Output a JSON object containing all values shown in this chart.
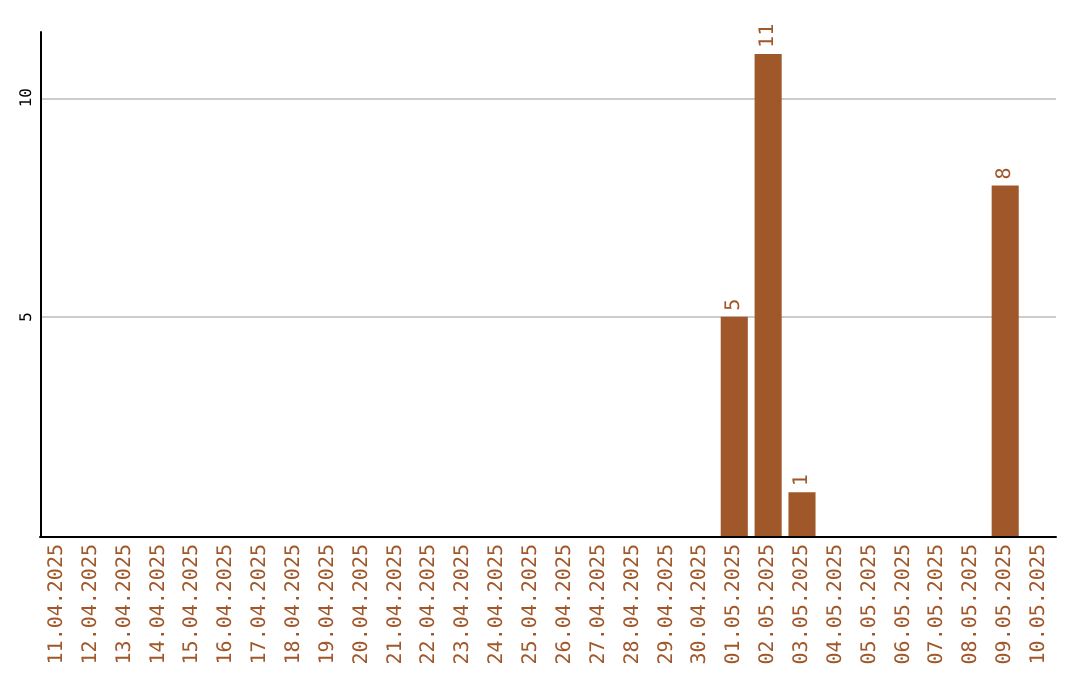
{
  "chart_data": {
    "type": "bar",
    "categories": [
      "11.04.2025",
      "12.04.2025",
      "13.04.2025",
      "14.04.2025",
      "15.04.2025",
      "16.04.2025",
      "17.04.2025",
      "18.04.2025",
      "19.04.2025",
      "20.04.2025",
      "21.04.2025",
      "22.04.2025",
      "23.04.2025",
      "24.04.2025",
      "25.04.2025",
      "26.04.2025",
      "27.04.2025",
      "28.04.2025",
      "29.04.2025",
      "30.04.2025",
      "01.05.2025",
      "02.05.2025",
      "03.05.2025",
      "04.05.2025",
      "05.05.2025",
      "06.05.2025",
      "07.05.2025",
      "08.05.2025",
      "09.05.2025",
      "10.05.2025"
    ],
    "values": [
      0,
      0,
      0,
      0,
      0,
      0,
      0,
      0,
      0,
      0,
      0,
      0,
      0,
      0,
      0,
      0,
      0,
      0,
      0,
      0,
      5,
      11,
      1,
      0,
      0,
      0,
      0,
      0,
      8,
      0
    ],
    "value_labels": [
      null,
      null,
      null,
      null,
      null,
      null,
      null,
      null,
      null,
      null,
      null,
      null,
      null,
      null,
      null,
      null,
      null,
      null,
      null,
      null,
      "5",
      "11",
      "1",
      null,
      null,
      null,
      null,
      null,
      "8",
      null
    ],
    "color": "#a0582a",
    "ylim": [
      0,
      11.5
    ],
    "yticks": [
      5,
      10
    ],
    "grid": "y"
  }
}
